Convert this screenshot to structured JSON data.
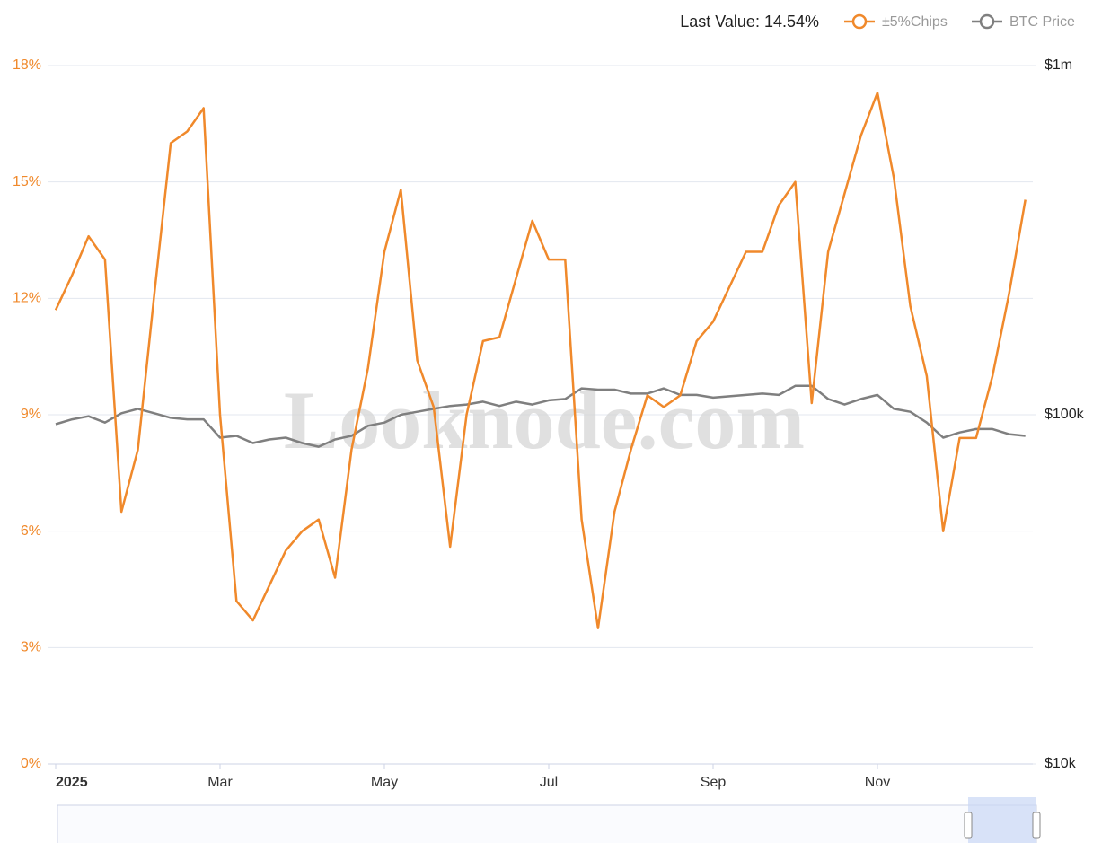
{
  "chart_data": {
    "type": "line",
    "last_value_label": "Last Value: 14.54%",
    "watermark": "Looknode.com",
    "categories": [
      "2025",
      null,
      null,
      null,
      null,
      null,
      null,
      null,
      null,
      null,
      "Mar",
      null,
      null,
      null,
      null,
      null,
      null,
      null,
      null,
      null,
      "May",
      null,
      null,
      null,
      null,
      null,
      null,
      null,
      null,
      null,
      "Jul",
      null,
      null,
      null,
      null,
      null,
      null,
      null,
      null,
      null,
      "Sep",
      null,
      null,
      null,
      null,
      null,
      null,
      null,
      null,
      null,
      "Nov",
      null,
      null,
      null,
      null,
      null,
      null,
      null,
      null,
      null
    ],
    "series": [
      {
        "name": "±5%Chips",
        "color": "#f0892b",
        "axis": "y",
        "values": [
          11.7,
          12.6,
          13.6,
          13.0,
          6.5,
          8.1,
          12.1,
          16.0,
          16.3,
          16.9,
          9.0,
          4.2,
          3.7,
          4.6,
          5.5,
          6.0,
          6.3,
          4.8,
          8.1,
          10.2,
          13.2,
          14.8,
          10.4,
          9.2,
          5.6,
          9.0,
          10.9,
          11.0,
          12.5,
          14.0,
          13.0,
          13.0,
          6.3,
          3.5,
          6.5,
          8.1,
          9.5,
          9.2,
          9.5,
          10.9,
          11.4,
          12.3,
          13.2,
          13.2,
          14.4,
          15.0,
          9.3,
          13.2,
          14.7,
          16.2,
          17.3,
          15.1,
          11.8,
          10.0,
          6.0,
          8.4,
          8.4,
          10.0,
          12.1,
          14.54
        ]
      },
      {
        "name": "BTC Price",
        "color": "#7f7f7f",
        "axis": "y2",
        "values": [
          94000,
          97000,
          99000,
          95000,
          101000,
          104000,
          101000,
          98000,
          97000,
          97000,
          86000,
          87000,
          83000,
          85000,
          86000,
          83000,
          81000,
          85000,
          87000,
          93000,
          95000,
          100000,
          102000,
          104000,
          106000,
          107000,
          109000,
          106000,
          109000,
          107000,
          110000,
          111000,
          119000,
          118000,
          118000,
          115000,
          115000,
          119000,
          114000,
          114000,
          112000,
          113000,
          114000,
          115000,
          114000,
          121000,
          121000,
          111000,
          107000,
          111000,
          114000,
          104000,
          102000,
          95000,
          86000,
          89000,
          91000,
          91000,
          88000,
          87000
        ]
      }
    ],
    "ylim": [
      0,
      18
    ],
    "yticks": [
      {
        "value": 0,
        "label": "0%"
      },
      {
        "value": 3,
        "label": "3%"
      },
      {
        "value": 6,
        "label": "6%"
      },
      {
        "value": 9,
        "label": "9%"
      },
      {
        "value": 12,
        "label": "12%"
      },
      {
        "value": 15,
        "label": "15%"
      },
      {
        "value": 18,
        "label": "18%"
      }
    ],
    "y2lim": [
      10000,
      1000000
    ],
    "y2ticks": [
      {
        "value": 10000,
        "label": "$10k"
      },
      {
        "value": 100000,
        "label": "$100k"
      },
      {
        "value": 1000000,
        "label": "$1m"
      }
    ],
    "y2log": true,
    "grid": true
  }
}
